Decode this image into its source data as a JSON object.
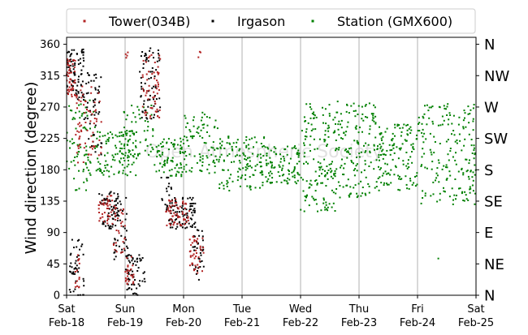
{
  "chart_data": {
    "type": "scatter",
    "ylabel": "Wind direction (degree)",
    "watermark": "Open Atmospheric Society",
    "ylim": [
      0,
      370
    ],
    "yticks": [
      0,
      45,
      90,
      135,
      180,
      225,
      270,
      315,
      360
    ],
    "xlim": [
      0,
      7
    ],
    "xticks": [
      {
        "day": "Sat",
        "date": "Feb-18"
      },
      {
        "day": "Sun",
        "date": "Feb-19"
      },
      {
        "day": "Mon",
        "date": "Feb-20"
      },
      {
        "day": "Tue",
        "date": "Feb-21"
      },
      {
        "day": "Wed",
        "date": "Feb-22"
      },
      {
        "day": "Thu",
        "date": "Feb-23"
      },
      {
        "day": "Fri",
        "date": "Feb-24"
      },
      {
        "day": "Sat",
        "date": "Feb-25"
      }
    ],
    "compass_labels": [
      {
        "label": "N",
        "deg": 0
      },
      {
        "label": "NE",
        "deg": 45
      },
      {
        "label": "E",
        "deg": 90
      },
      {
        "label": "SE",
        "deg": 135
      },
      {
        "label": "S",
        "deg": 180
      },
      {
        "label": "SW",
        "deg": 225
      },
      {
        "label": "W",
        "deg": 270
      },
      {
        "label": "NW",
        "deg": 315
      },
      {
        "label": "N",
        "deg": 360
      }
    ],
    "grid": "vertical",
    "legend_position": "top",
    "series": [
      {
        "name": "Tower(034B)",
        "color": "#b22222",
        "segments": [
          {
            "x": [
              0.0,
              0.15
            ],
            "y": [
              285,
              340
            ],
            "n": 50
          },
          {
            "x": [
              0.15,
              0.6
            ],
            "y": [
              190,
              300
            ],
            "n": 70
          },
          {
            "x": [
              0.15,
              0.22
            ],
            "y": [
              10,
              60
            ],
            "n": 15
          },
          {
            "x": [
              0.55,
              0.8
            ],
            "y": [
              100,
              145
            ],
            "n": 40
          },
          {
            "x": [
              0.8,
              1.0
            ],
            "y": [
              60,
              130
            ],
            "n": 30
          },
          {
            "x": [
              1.0,
              1.15
            ],
            "y": [
              15,
              55
            ],
            "n": 25
          },
          {
            "x": [
              1.3,
              1.6
            ],
            "y": [
              250,
              345
            ],
            "n": 60
          },
          {
            "x": [
              1.0,
              1.05
            ],
            "y": [
              340,
              355
            ],
            "n": 4
          },
          {
            "x": [
              1.7,
              2.1
            ],
            "y": [
              100,
              140
            ],
            "n": 60
          },
          {
            "x": [
              2.1,
              2.35
            ],
            "y": [
              30,
              85
            ],
            "n": 40
          },
          {
            "x": [
              2.25,
              2.3
            ],
            "y": [
              340,
              355
            ],
            "n": 3
          }
        ]
      },
      {
        "name": "Irgason",
        "color": "#000000",
        "segments": [
          {
            "x": [
              0.0,
              0.3
            ],
            "y": [
              280,
              355
            ],
            "n": 80
          },
          {
            "x": [
              0.3,
              0.6
            ],
            "y": [
              200,
              320
            ],
            "n": 50
          },
          {
            "x": [
              0.05,
              0.3
            ],
            "y": [
              0,
              80
            ],
            "n": 45
          },
          {
            "x": [
              0.55,
              0.9
            ],
            "y": [
              95,
              150
            ],
            "n": 60
          },
          {
            "x": [
              0.8,
              1.05
            ],
            "y": [
              50,
              140
            ],
            "n": 45
          },
          {
            "x": [
              1.0,
              1.35
            ],
            "y": [
              0,
              60
            ],
            "n": 60
          },
          {
            "x": [
              1.25,
              1.6
            ],
            "y": [
              250,
              355
            ],
            "n": 70
          },
          {
            "x": [
              1.6,
              1.8
            ],
            "y": [
              120,
              170
            ],
            "n": 20
          },
          {
            "x": [
              1.75,
              2.2
            ],
            "y": [
              95,
              140
            ],
            "n": 90
          },
          {
            "x": [
              2.15,
              2.35
            ],
            "y": [
              20,
              95
            ],
            "n": 35
          }
        ]
      },
      {
        "name": "Station (GMX600)",
        "color": "#008000",
        "segments": [
          {
            "x": [
              0.0,
              0.5
            ],
            "y": [
              150,
              280
            ],
            "n": 80
          },
          {
            "x": [
              0.5,
              1.2
            ],
            "y": [
              170,
              235
            ],
            "n": 110
          },
          {
            "x": [
              0.9,
              1.5
            ],
            "y": [
              200,
              275
            ],
            "n": 60
          },
          {
            "x": [
              1.5,
              2.0
            ],
            "y": [
              170,
              225
            ],
            "n": 80
          },
          {
            "x": [
              2.0,
              2.6
            ],
            "y": [
              175,
              265
            ],
            "n": 90
          },
          {
            "x": [
              2.6,
              3.4
            ],
            "y": [
              150,
              230
            ],
            "n": 130
          },
          {
            "x": [
              3.4,
              4.0
            ],
            "y": [
              160,
              215
            ],
            "n": 100
          },
          {
            "x": [
              4.0,
              4.6
            ],
            "y": [
              120,
              275
            ],
            "n": 150
          },
          {
            "x": [
              4.6,
              5.3
            ],
            "y": [
              140,
              280
            ],
            "n": 150
          },
          {
            "x": [
              5.3,
              6.0
            ],
            "y": [
              150,
              245
            ],
            "n": 140
          },
          {
            "x": [
              6.0,
              7.0
            ],
            "y": [
              130,
              275
            ],
            "n": 190
          },
          {
            "x": [
              6.3,
              6.4
            ],
            "y": [
              45,
              55
            ],
            "n": 1
          }
        ]
      }
    ]
  }
}
